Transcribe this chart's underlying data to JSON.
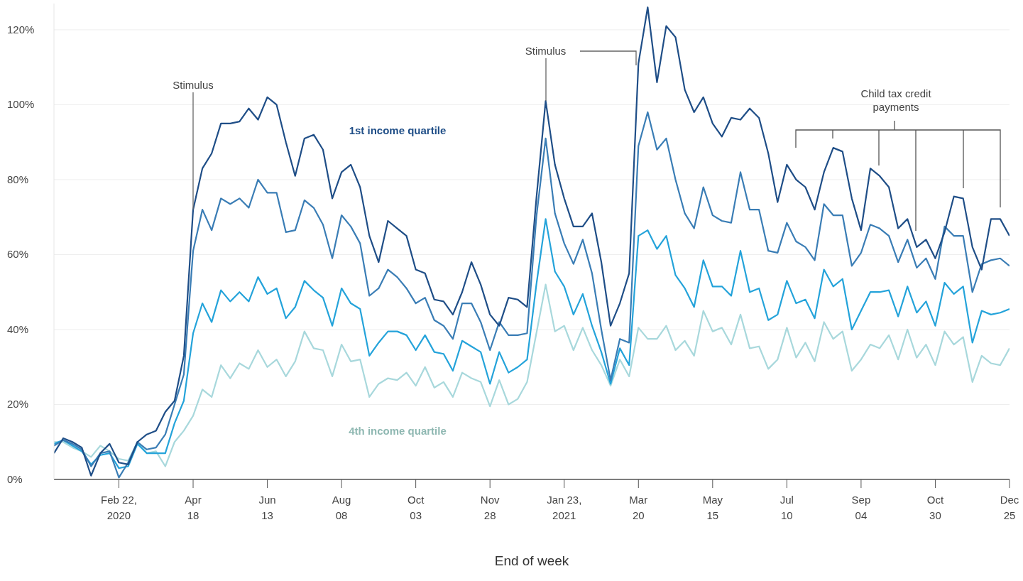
{
  "chart_data": {
    "type": "line",
    "xlabel": "End of week",
    "x": [
      "2020-01-04",
      "2020-01-11",
      "2020-01-18",
      "2020-01-25",
      "2020-02-01",
      "2020-02-08",
      "2020-02-15",
      "2020-02-22",
      "2020-02-29",
      "2020-03-07",
      "2020-03-14",
      "2020-03-21",
      "2020-03-28",
      "2020-04-04",
      "2020-04-11",
      "2020-04-18",
      "2020-04-25",
      "2020-05-02",
      "2020-05-09",
      "2020-05-16",
      "2020-05-23",
      "2020-05-30",
      "2020-06-06",
      "2020-06-13",
      "2020-06-20",
      "2020-06-27",
      "2020-07-04",
      "2020-07-11",
      "2020-07-18",
      "2020-07-25",
      "2020-08-01",
      "2020-08-08",
      "2020-08-15",
      "2020-08-22",
      "2020-08-29",
      "2020-09-05",
      "2020-09-12",
      "2020-09-19",
      "2020-09-26",
      "2020-10-03",
      "2020-10-10",
      "2020-10-17",
      "2020-10-24",
      "2020-10-31",
      "2020-11-07",
      "2020-11-14",
      "2020-11-21",
      "2020-11-28",
      "2020-12-05",
      "2020-12-12",
      "2020-12-19",
      "2020-12-26",
      "2021-01-02",
      "2021-01-09",
      "2021-01-16",
      "2021-01-23",
      "2021-01-30",
      "2021-02-06",
      "2021-02-13",
      "2021-02-20",
      "2021-02-27",
      "2021-03-06",
      "2021-03-13",
      "2021-03-20",
      "2021-03-27",
      "2021-04-03",
      "2021-04-10",
      "2021-04-17",
      "2021-04-24",
      "2021-05-01",
      "2021-05-08",
      "2021-05-15",
      "2021-05-22",
      "2021-05-29",
      "2021-06-05",
      "2021-06-12",
      "2021-06-19",
      "2021-06-26",
      "2021-07-03",
      "2021-07-10",
      "2021-07-17",
      "2021-07-24",
      "2021-07-31",
      "2021-08-07",
      "2021-08-14",
      "2021-08-21",
      "2021-08-28",
      "2021-09-04",
      "2021-09-11",
      "2021-09-18",
      "2021-09-25",
      "2021-10-02",
      "2021-10-09",
      "2021-10-16",
      "2021-10-23",
      "2021-10-30",
      "2021-11-06",
      "2021-11-13",
      "2021-11-20",
      "2021-11-27",
      "2021-12-04",
      "2021-12-11",
      "2021-12-18",
      "2021-12-25"
    ],
    "series": [
      {
        "name": "1st income quartile",
        "color": "#1f4e87",
        "values": [
          7,
          11,
          10,
          8.5,
          1,
          7,
          9.5,
          4.5,
          4,
          10,
          12,
          13,
          18,
          21,
          33,
          72,
          83,
          87,
          95,
          95,
          95.5,
          99,
          96,
          102,
          100,
          90,
          81,
          91,
          92,
          88,
          75,
          82,
          84,
          78,
          65,
          58,
          69,
          67,
          65,
          56,
          55,
          48,
          47.5,
          44,
          50,
          58,
          52,
          44,
          41,
          48.5,
          48,
          46,
          75,
          101,
          84,
          75,
          67.5,
          67.5,
          71,
          58,
          41,
          47,
          55,
          111,
          126,
          106,
          121,
          118,
          104,
          98,
          102,
          95,
          91.5,
          96.5,
          96,
          99,
          96.5,
          87,
          74,
          84,
          80,
          78,
          72,
          82,
          88.5,
          87.5,
          75,
          66.5,
          83,
          81,
          78,
          67,
          69.5,
          62,
          64,
          59,
          66,
          75.5,
          75,
          62,
          56,
          69.5,
          69.5,
          65
        ]
      },
      {
        "color": "#3a7db5",
        "values": [
          9,
          10.5,
          9.5,
          8,
          3.5,
          7,
          7.5,
          0.5,
          4.5,
          10,
          8,
          8.5,
          12,
          20,
          28,
          61,
          72,
          66.5,
          75,
          73.5,
          75,
          72.5,
          80,
          76.5,
          76.5,
          66,
          66.5,
          74.5,
          72.5,
          68,
          59,
          70.5,
          67.5,
          63,
          49,
          51,
          56,
          54,
          51,
          47,
          48.5,
          42.5,
          41,
          37.5,
          47,
          47,
          42,
          34.5,
          42,
          38.5,
          38.5,
          39,
          70,
          91,
          71,
          63,
          57.5,
          64,
          55,
          40,
          26.5,
          37.5,
          36.5,
          89,
          98,
          88,
          91,
          80,
          71,
          67,
          78,
          70.5,
          69,
          68.5,
          82,
          72,
          72,
          61,
          60.5,
          68.5,
          63.5,
          62,
          58.5,
          73.5,
          70.5,
          70.5,
          57,
          60.5,
          68,
          67,
          65,
          58,
          64,
          56.5,
          59,
          53.5,
          67.5,
          65,
          65,
          50,
          57.5,
          58.5,
          59,
          57
        ]
      },
      {
        "color": "#24a3da",
        "values": [
          9.5,
          10.5,
          9,
          7.5,
          4,
          6.5,
          7,
          3,
          3.5,
          9.5,
          7,
          7,
          7,
          15,
          21,
          39,
          47,
          42,
          50.5,
          47.5,
          50,
          47.5,
          54,
          49.5,
          51,
          43,
          46,
          53,
          50.5,
          48.5,
          41,
          51,
          47,
          45.5,
          33,
          36.5,
          39.5,
          39.5,
          38.5,
          34.5,
          38.5,
          34,
          33.5,
          29,
          37,
          35.5,
          34,
          25.5,
          34,
          28.5,
          30,
          32,
          52,
          69.5,
          55.5,
          51.5,
          44,
          49.5,
          41,
          34,
          25.5,
          35,
          30.5,
          65,
          66.5,
          61.5,
          65,
          54.5,
          51,
          46,
          58.5,
          51.5,
          51.5,
          49,
          61,
          50,
          51,
          42.5,
          44,
          53,
          47,
          48,
          43,
          56,
          51.5,
          53.5,
          40,
          45,
          50,
          50,
          50.5,
          43.5,
          51.5,
          44.5,
          47.5,
          41,
          52.5,
          49.5,
          51.5,
          36.5,
          45,
          44,
          44.5,
          45.5
        ]
      },
      {
        "name": "4th income quartile",
        "color": "#a8d8dc",
        "values": [
          10,
          10,
          8.5,
          7.5,
          6,
          9,
          7.5,
          5.5,
          5,
          10,
          7,
          7.5,
          3.5,
          10,
          13,
          17,
          24,
          22,
          30.5,
          27,
          31,
          29.5,
          34.5,
          30,
          32,
          27.5,
          31.5,
          39.5,
          35,
          34.5,
          27.5,
          36,
          31.5,
          32,
          22,
          25.5,
          27,
          26.5,
          28.5,
          25,
          30,
          24.5,
          26,
          22,
          28.5,
          27,
          26,
          19.5,
          26.5,
          20,
          21.5,
          26,
          39,
          52,
          39.5,
          41,
          34.5,
          40.5,
          34.5,
          30.5,
          25,
          32,
          27.5,
          40.5,
          37.5,
          37.5,
          41,
          34.5,
          37,
          33,
          45,
          39.5,
          40.5,
          36,
          44,
          35,
          35.5,
          29.5,
          32,
          40.5,
          32.5,
          36.5,
          31.5,
          42,
          37.5,
          39.5,
          29,
          32,
          36,
          35,
          38.5,
          32,
          40,
          32.5,
          36,
          30.5,
          39.5,
          36,
          38,
          26,
          33,
          31,
          30.5,
          35
        ]
      }
    ],
    "xlim": [
      "2020-01-04",
      "2021-12-25"
    ],
    "xticks": [
      {
        "value": "2020-02-22",
        "label": "Feb 22,\n2020"
      },
      {
        "value": "2020-04-18",
        "label": "Apr\n18"
      },
      {
        "value": "2020-06-13",
        "label": "Jun\n13"
      },
      {
        "value": "2020-08-08",
        "label": "Aug\n08"
      },
      {
        "value": "2020-10-03",
        "label": "Oct\n03"
      },
      {
        "value": "2020-11-28",
        "label": "Nov\n28"
      },
      {
        "value": "2021-01-23",
        "label": "Jan 23,\n2021"
      },
      {
        "value": "2021-03-20",
        "label": "Mar\n20"
      },
      {
        "value": "2021-05-15",
        "label": "May\n15"
      },
      {
        "value": "2021-07-10",
        "label": "Jul\n10"
      },
      {
        "value": "2021-09-04",
        "label": "Sep\n04"
      },
      {
        "value": "2021-10-30",
        "label": "Oct\n30"
      },
      {
        "value": "2021-12-25",
        "label": "Dec\n25"
      }
    ],
    "ylim": [
      0,
      127
    ],
    "yticks": [
      {
        "value": 0,
        "label": "0%"
      },
      {
        "value": 20,
        "label": "20%"
      },
      {
        "value": 40,
        "label": "40%"
      },
      {
        "value": 60,
        "label": "60%"
      },
      {
        "value": 80,
        "label": "80%"
      },
      {
        "value": 100,
        "label": "100%"
      },
      {
        "value": 120,
        "label": "120%"
      }
    ],
    "grid": "y",
    "annotations": [
      {
        "text": "Stimulus",
        "x": "2020-04-18",
        "y": 72
      },
      {
        "text": "Stimulus",
        "x": "2021-01-09",
        "y": 101
      },
      "Child tax credit payments"
    ]
  }
}
